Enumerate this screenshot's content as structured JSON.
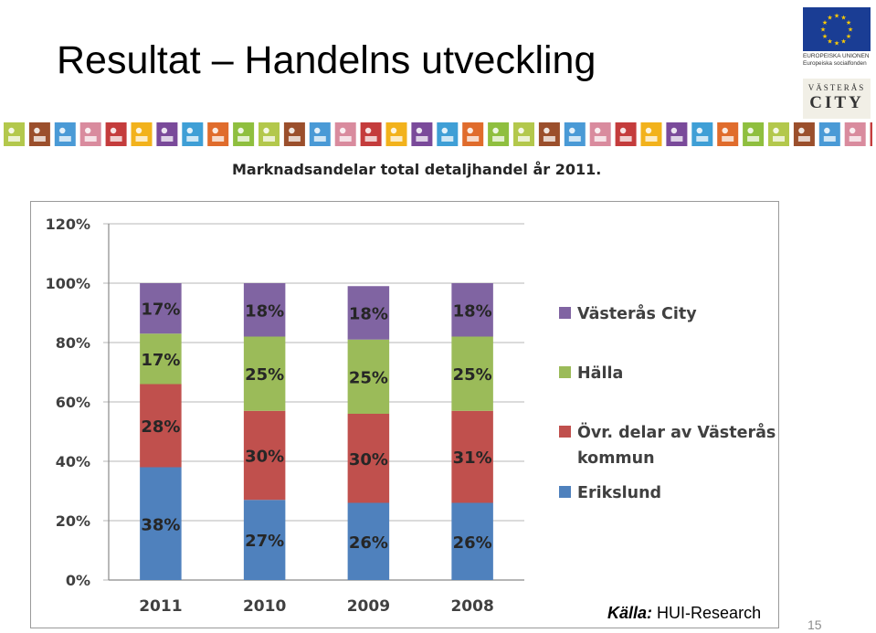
{
  "slide": {
    "title": "Resultat – Handelns utveckling",
    "source_label": "Källa:",
    "source_name": "HUI-Research",
    "page_number": "15"
  },
  "logos": {
    "eu_line1": "EUROPEISKA UNIONEN",
    "eu_line2": "Europeiska socialfonden",
    "city_top": "VÄSTERÅS",
    "city_bottom": "CITY"
  },
  "icon_strip": {
    "name": "decorative-pictogram-strip",
    "colors": [
      "#b3c84c",
      "#9b4f2c",
      "#4a9ad6",
      "#d98b9e",
      "#c43c3c",
      "#f2b21c",
      "#7a4a9a",
      "#3f9fd6",
      "#e06c2c",
      "#8fbf3f"
    ]
  },
  "chart_data": {
    "type": "bar",
    "stacked": true,
    "title": "Marknadsandelar total detaljhandel år 2011.",
    "categories": [
      "2011",
      "2010",
      "2009",
      "2008"
    ],
    "series": [
      {
        "name": "Erikslund",
        "values": [
          38,
          27,
          26,
          26
        ],
        "color": "#4f81bd"
      },
      {
        "name": "Övr. delar av Västerås kommun",
        "values": [
          28,
          30,
          30,
          31
        ],
        "color": "#c0504d"
      },
      {
        "name": "Hälla",
        "values": [
          17,
          25,
          25,
          25
        ],
        "color": "#9bbb59"
      },
      {
        "name": "Västerås City",
        "values": [
          17,
          18,
          18,
          18
        ],
        "color": "#8064a2"
      }
    ],
    "data_labels": [
      [
        "38%",
        "27%",
        "26%",
        "26%"
      ],
      [
        "28%",
        "30%",
        "30%",
        "31%"
      ],
      [
        "17%",
        "25%",
        "25%",
        "25%"
      ],
      [
        "17%",
        "18%",
        "18%",
        "18%"
      ]
    ],
    "ylim": [
      0,
      120
    ],
    "yticks": [
      0,
      20,
      40,
      60,
      80,
      100,
      120
    ],
    "ytick_labels": [
      "0%",
      "20%",
      "40%",
      "60%",
      "80%",
      "100%",
      "120%"
    ],
    "xlabel": "",
    "ylabel": "",
    "grid": true,
    "legend_position": "right",
    "legend_order": [
      3,
      2,
      1,
      0
    ]
  }
}
